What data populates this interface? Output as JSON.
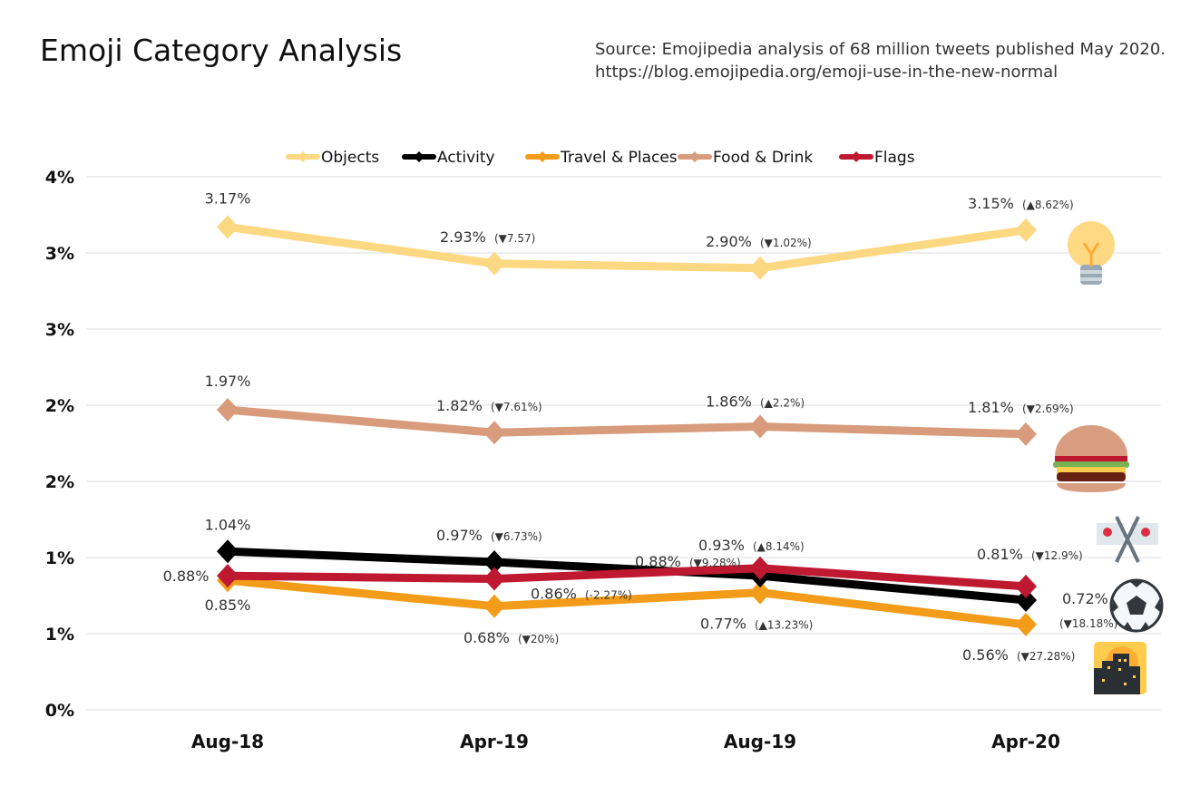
{
  "title": "Emoji Category Analysis",
  "source_line1": "Source: Emojipedia analysis of 68 million tweets published May 2020.",
  "source_line2": "https://blog.emojipedia.org/emoji-use-in-the-new-normal",
  "chart_data": {
    "type": "line",
    "title": "Emoji Category Analysis",
    "categories": [
      "Aug-18",
      "Apr-19",
      "Aug-19",
      "Apr-20"
    ],
    "ylim": [
      0,
      3.5
    ],
    "yticks": [
      0,
      0.5,
      1,
      1.5,
      2,
      2.5,
      3,
      3.5
    ],
    "ytick_labels": [
      "0%",
      "1%",
      "1%",
      "2%",
      "2%",
      "3%",
      "3%",
      "4%"
    ],
    "grid": true,
    "legend": "top-center",
    "series": [
      {
        "name": "Objects",
        "color": "#FDD882",
        "icon": "light-bulb-icon",
        "values": [
          3.17,
          2.93,
          2.9,
          3.15
        ],
        "labels": [
          "3.17%",
          "2.93%",
          "2.90%",
          "3.15%"
        ],
        "changes": [
          "",
          "(▼7.57)",
          "(▼1.02%)",
          "(▲8.62%)"
        ]
      },
      {
        "name": "Activity",
        "color": "#000000",
        "icon": "soccer-ball-icon",
        "values": [
          1.04,
          0.97,
          0.88,
          0.72
        ],
        "labels": [
          "1.04%",
          "0.97%",
          "0.88%",
          "0.72%"
        ],
        "changes": [
          "",
          "(▼6.73%)",
          "(▼9.28%)",
          "(▼18.18%)"
        ]
      },
      {
        "name": "Travel & Places",
        "color": "#F39C1A",
        "icon": "sunrise-over-city-icon",
        "values": [
          0.85,
          0.68,
          0.77,
          0.56
        ],
        "labels": [
          "0.85%",
          "0.68%",
          "0.77%",
          "0.56%"
        ],
        "changes": [
          "",
          "(▼20%)",
          "(▲13.23%)",
          "(▼27.28%)"
        ]
      },
      {
        "name": "Food & Drink",
        "color": "#D89B7C",
        "icon": "hamburger-icon",
        "values": [
          1.97,
          1.82,
          1.86,
          1.81
        ],
        "labels": [
          "1.97%",
          "1.82%",
          "1.86%",
          "1.81%"
        ],
        "changes": [
          "",
          "(▼7.61%)",
          "(▲2.2%)",
          "(▼2.69%)"
        ]
      },
      {
        "name": "Flags",
        "color": "#BE1931",
        "icon": "crossed-flags-icon",
        "values": [
          0.88,
          0.86,
          0.93,
          0.81
        ],
        "labels": [
          "0.88%",
          "0.86%",
          "0.93%",
          "0.81%"
        ],
        "changes": [
          "",
          "(-2.27%)",
          "(▲8.14%)",
          "(▼12.9%)"
        ]
      }
    ]
  }
}
